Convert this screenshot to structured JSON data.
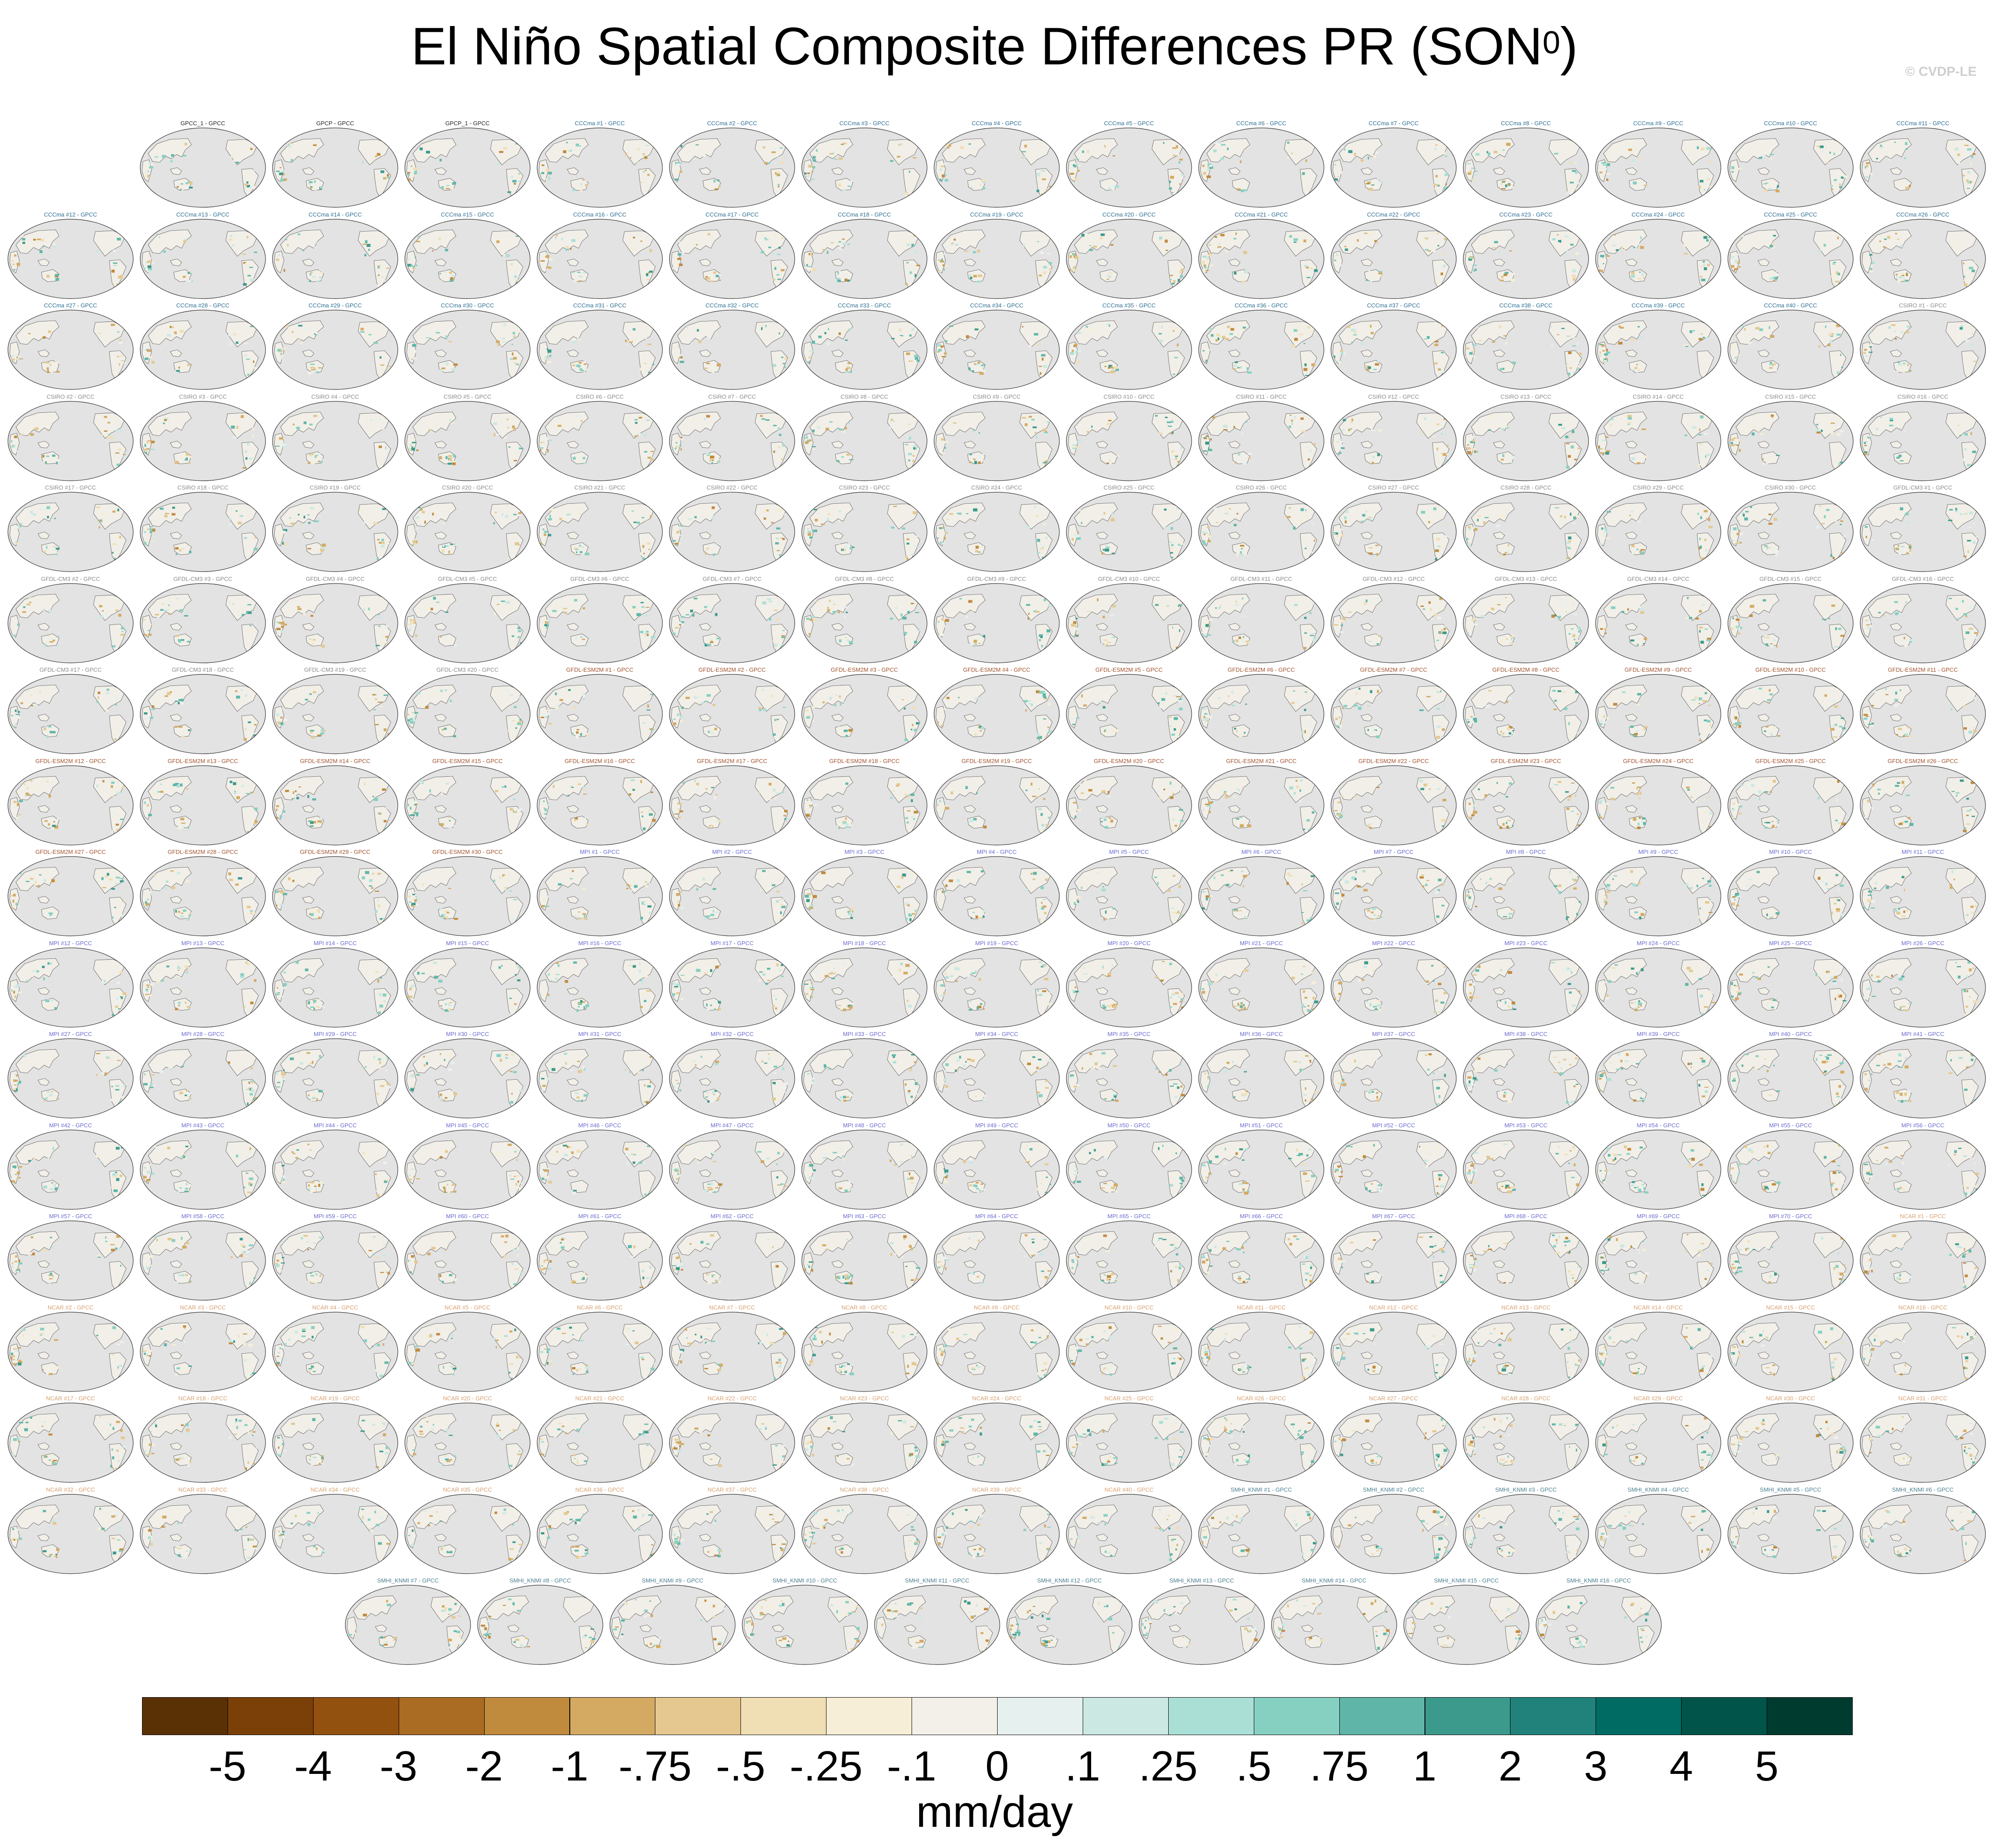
{
  "title": "El Niño Spatial Composite Differences PR (SON",
  "title_superscript": "0",
  "title_close": ")",
  "credit": "© CVDP-LE",
  "chart_data": {
    "type": "heatmap",
    "title": "El Niño Spatial Composite Differences PR (SON0)",
    "units": "mm/day",
    "colorbar": {
      "tick_labels": [
        "-5",
        "-4",
        "-3",
        "-2",
        "-1",
        "-.75",
        "-.5",
        "-.25",
        "-.1",
        "0",
        ".1",
        ".25",
        ".5",
        ".75",
        "1",
        "2",
        "3",
        "4",
        "5"
      ],
      "colors": [
        "#5a3005",
        "#7a4008",
        "#935110",
        "#aa6b23",
        "#c18b3d",
        "#d4aa63",
        "#e4c88f",
        "#f0dfb5",
        "#f6eed6",
        "#f3f0ea",
        "#e6f0ee",
        "#cbe8e3",
        "#aadfd6",
        "#86d0c2",
        "#5fb6a8",
        "#3c9a8d",
        "#20827a",
        "#006b63",
        "#00544a",
        "#003b30"
      ],
      "range": [
        -5,
        5
      ]
    },
    "rows": [
      [
        "GPCC_1 - GPCC",
        "GPCP - GPCC",
        "GPCP_1 - GPCC",
        "CCCma #1 - GPCC",
        "CCCma #2 - GPCC",
        "CCCma #3 - GPCC",
        "CCCma #4 - GPCC",
        "CCCma #5 - GPCC",
        "CCCma #6 - GPCC",
        "CCCma #7 - GPCC",
        "CCCma #8 - GPCC",
        "CCCma #9 - GPCC",
        "CCCma #10 - GPCC",
        "CCCma #11 - GPCC"
      ],
      [
        "CCCma #12 - GPCC",
        "CCCma #13 - GPCC",
        "CCCma #14 - GPCC",
        "CCCma #15 - GPCC",
        "CCCma #16 - GPCC",
        "CCCma #17 - GPCC",
        "CCCma #18 - GPCC",
        "CCCma #19 - GPCC",
        "CCCma #20 - GPCC",
        "CCCma #21 - GPCC",
        "CCCma #22 - GPCC",
        "CCCma #23 - GPCC",
        "CCCma #24 - GPCC",
        "CCCma #25 - GPCC",
        "CCCma #26 - GPCC"
      ],
      [
        "CCCma #27 - GPCC",
        "CCCma #28 - GPCC",
        "CCCma #29 - GPCC",
        "CCCma #30 - GPCC",
        "CCCma #31 - GPCC",
        "CCCma #32 - GPCC",
        "CCCma #33 - GPCC",
        "CCCma #34 - GPCC",
        "CCCma #35 - GPCC",
        "CCCma #36 - GPCC",
        "CCCma #37 - GPCC",
        "CCCma #38 - GPCC",
        "CCCma #39 - GPCC",
        "CCCma #40 - GPCC",
        "CSIRO #1 - GPCC"
      ],
      [
        "CSIRO #2 - GPCC",
        "CSIRO #3 - GPCC",
        "CSIRO #4 - GPCC",
        "CSIRO #5 - GPCC",
        "CSIRO #6 - GPCC",
        "CSIRO #7 - GPCC",
        "CSIRO #8 - GPCC",
        "CSIRO #9 - GPCC",
        "CSIRO #10 - GPCC",
        "CSIRO #11 - GPCC",
        "CSIRO #12 - GPCC",
        "CSIRO #13 - GPCC",
        "CSIRO #14 - GPCC",
        "CSIRO #15 - GPCC",
        "CSIRO #16 - GPCC"
      ],
      [
        "CSIRO #17 - GPCC",
        "CSIRO #18 - GPCC",
        "CSIRO #19 - GPCC",
        "CSIRO #20 - GPCC",
        "CSIRO #21 - GPCC",
        "CSIRO #22 - GPCC",
        "CSIRO #23 - GPCC",
        "CSIRO #24 - GPCC",
        "CSIRO #25 - GPCC",
        "CSIRO #26 - GPCC",
        "CSIRO #27 - GPCC",
        "CSIRO #28 - GPCC",
        "CSIRO #29 - GPCC",
        "CSIRO #30 - GPCC",
        "GFDL-CM3 #1 - GPCC"
      ],
      [
        "GFDL-CM3 #2 - GPCC",
        "GFDL-CM3 #3 - GPCC",
        "GFDL-CM3 #4 - GPCC",
        "GFDL-CM3 #5 - GPCC",
        "GFDL-CM3 #6 - GPCC",
        "GFDL-CM3 #7 - GPCC",
        "GFDL-CM3 #8 - GPCC",
        "GFDL-CM3 #9 - GPCC",
        "GFDL-CM3 #10 - GPCC",
        "GFDL-CM3 #11 - GPCC",
        "GFDL-CM3 #12 - GPCC",
        "GFDL-CM3 #13 - GPCC",
        "GFDL-CM3 #14 - GPCC",
        "GFDL-CM3 #15 - GPCC",
        "GFDL-CM3 #16 - GPCC"
      ],
      [
        "GFDL-CM3 #17 - GPCC",
        "GFDL-CM3 #18 - GPCC",
        "GFDL-CM3 #19 - GPCC",
        "GFDL-CM3 #20 - GPCC",
        "GFDL-ESM2M #1 - GPCC",
        "GFDL-ESM2M #2 - GPCC",
        "GFDL-ESM2M #3 - GPCC",
        "GFDL-ESM2M #4 - GPCC",
        "GFDL-ESM2M #5 - GPCC",
        "GFDL-ESM2M #6 - GPCC",
        "GFDL-ESM2M #7 - GPCC",
        "GFDL-ESM2M #8 - GPCC",
        "GFDL-ESM2M #9 - GPCC",
        "GFDL-ESM2M #10 - GPCC",
        "GFDL-ESM2M #11 - GPCC"
      ],
      [
        "GFDL-ESM2M #12 - GPCC",
        "GFDL-ESM2M #13 - GPCC",
        "GFDL-ESM2M #14 - GPCC",
        "GFDL-ESM2M #15 - GPCC",
        "GFDL-ESM2M #16 - GPCC",
        "GFDL-ESM2M #17 - GPCC",
        "GFDL-ESM2M #18 - GPCC",
        "GFDL-ESM2M #19 - GPCC",
        "GFDL-ESM2M #20 - GPCC",
        "GFDL-ESM2M #21 - GPCC",
        "GFDL-ESM2M #22 - GPCC",
        "GFDL-ESM2M #23 - GPCC",
        "GFDL-ESM2M #24 - GPCC",
        "GFDL-ESM2M #25 - GPCC",
        "GFDL-ESM2M #26 - GPCC"
      ],
      [
        "GFDL-ESM2M #27 - GPCC",
        "GFDL-ESM2M #28 - GPCC",
        "GFDL-ESM2M #29 - GPCC",
        "GFDL-ESM2M #30 - GPCC",
        "MPI #1 - GPCC",
        "MPI #2 - GPCC",
        "MPI #3 - GPCC",
        "MPI #4 - GPCC",
        "MPI #5 - GPCC",
        "MPI #6 - GPCC",
        "MPI #7 - GPCC",
        "MPI #8 - GPCC",
        "MPI #9 - GPCC",
        "MPI #10 - GPCC",
        "MPI #11 - GPCC"
      ],
      [
        "MPI #12 - GPCC",
        "MPI #13 - GPCC",
        "MPI #14 - GPCC",
        "MPI #15 - GPCC",
        "MPI #16 - GPCC",
        "MPI #17 - GPCC",
        "MPI #18 - GPCC",
        "MPI #19 - GPCC",
        "MPI #20 - GPCC",
        "MPI #21 - GPCC",
        "MPI #22 - GPCC",
        "MPI #23 - GPCC",
        "MPI #24 - GPCC",
        "MPI #25 - GPCC",
        "MPI #26 - GPCC"
      ],
      [
        "MPI #27 - GPCC",
        "MPI #28 - GPCC",
        "MPI #29 - GPCC",
        "MPI #30 - GPCC",
        "MPI #31 - GPCC",
        "MPI #32 - GPCC",
        "MPI #33 - GPCC",
        "MPI #34 - GPCC",
        "MPI #35 - GPCC",
        "MPI #36 - GPCC",
        "MPI #37 - GPCC",
        "MPI #38 - GPCC",
        "MPI #39 - GPCC",
        "MPI #40 - GPCC",
        "MPI #41 - GPCC"
      ],
      [
        "MPI #42 - GPCC",
        "MPI #43 - GPCC",
        "MPI #44 - GPCC",
        "MPI #45 - GPCC",
        "MPI #46 - GPCC",
        "MPI #47 - GPCC",
        "MPI #48 - GPCC",
        "MPI #49 - GPCC",
        "MPI #50 - GPCC",
        "MPI #51 - GPCC",
        "MPI #52 - GPCC",
        "MPI #53 - GPCC",
        "MPI #54 - GPCC",
        "MPI #55 - GPCC",
        "MPI #56 - GPCC"
      ],
      [
        "MPI #57 - GPCC",
        "MPI #58 - GPCC",
        "MPI #59 - GPCC",
        "MPI #60 - GPCC",
        "MPI #61 - GPCC",
        "MPI #62 - GPCC",
        "MPI #63 - GPCC",
        "MPI #64 - GPCC",
        "MPI #65 - GPCC",
        "MPI #66 - GPCC",
        "MPI #67 - GPCC",
        "MPI #68 - GPCC",
        "MPI #69 - GPCC",
        "MPI #70 - GPCC",
        "NCAR #1 - GPCC"
      ],
      [
        "NCAR #2 - GPCC",
        "NCAR #3 - GPCC",
        "NCAR #4 - GPCC",
        "NCAR #5 - GPCC",
        "NCAR #6 - GPCC",
        "NCAR #7 - GPCC",
        "NCAR #8 - GPCC",
        "NCAR #9 - GPCC",
        "NCAR #10 - GPCC",
        "NCAR #11 - GPCC",
        "NCAR #12 - GPCC",
        "NCAR #13 - GPCC",
        "NCAR #14 - GPCC",
        "NCAR #15 - GPCC",
        "NCAR #16 - GPCC"
      ],
      [
        "NCAR #17 - GPCC",
        "NCAR #18 - GPCC",
        "NCAR #19 - GPCC",
        "NCAR #20 - GPCC",
        "NCAR #21 - GPCC",
        "NCAR #22 - GPCC",
        "NCAR #23 - GPCC",
        "NCAR #24 - GPCC",
        "NCAR #25 - GPCC",
        "NCAR #26 - GPCC",
        "NCAR #27 - GPCC",
        "NCAR #28 - GPCC",
        "NCAR #29 - GPCC",
        "NCAR #30 - GPCC",
        "NCAR #31 - GPCC"
      ],
      [
        "NCAR #32 - GPCC",
        "NCAR #33 - GPCC",
        "NCAR #34 - GPCC",
        "NCAR #35 - GPCC",
        "NCAR #36 - GPCC",
        "NCAR #37 - GPCC",
        "NCAR #38 - GPCC",
        "NCAR #39 - GPCC",
        "NCAR #40 - GPCC",
        "SMHI_KNMI #1 - GPCC",
        "SMHI_KNMI #2 - GPCC",
        "SMHI_KNMI #3 - GPCC",
        "SMHI_KNMI #4 - GPCC",
        "SMHI_KNMI #5 - GPCC",
        "SMHI_KNMI #6 - GPCC"
      ],
      [
        "SMHI_KNMI #7 - GPCC",
        "SMHI_KNMI #8 - GPCC",
        "SMHI_KNMI #9 - GPCC",
        "SMHI_KNMI #10 - GPCC",
        "SMHI_KNMI #11 - GPCC",
        "SMHI_KNMI #12 - GPCC",
        "SMHI_KNMI #13 - GPCC",
        "SMHI_KNMI #14 - GPCC",
        "SMHI_KNMI #15 - GPCC",
        "SMHI_KNMI #16 - GPCC"
      ]
    ],
    "label_colors": {
      "GPCC_1": "#222222",
      "GPCP": "#222222",
      "GPCP_1": "#222222",
      "CCCma": "#2b6e94",
      "CSIRO": "#8a8a8a",
      "GFDL-CM3": "#8a8a8a",
      "GFDL-ESM2M": "#a0522d",
      "MPI": "#6a6ad0",
      "NCAR": "#d8a070",
      "SMHI_KNMI": "#4a7f90"
    },
    "map": {
      "projection": "Robinson (Pacific-centred)",
      "ocean_color": "#e3e3e3",
      "coast_color": "#555555"
    }
  }
}
